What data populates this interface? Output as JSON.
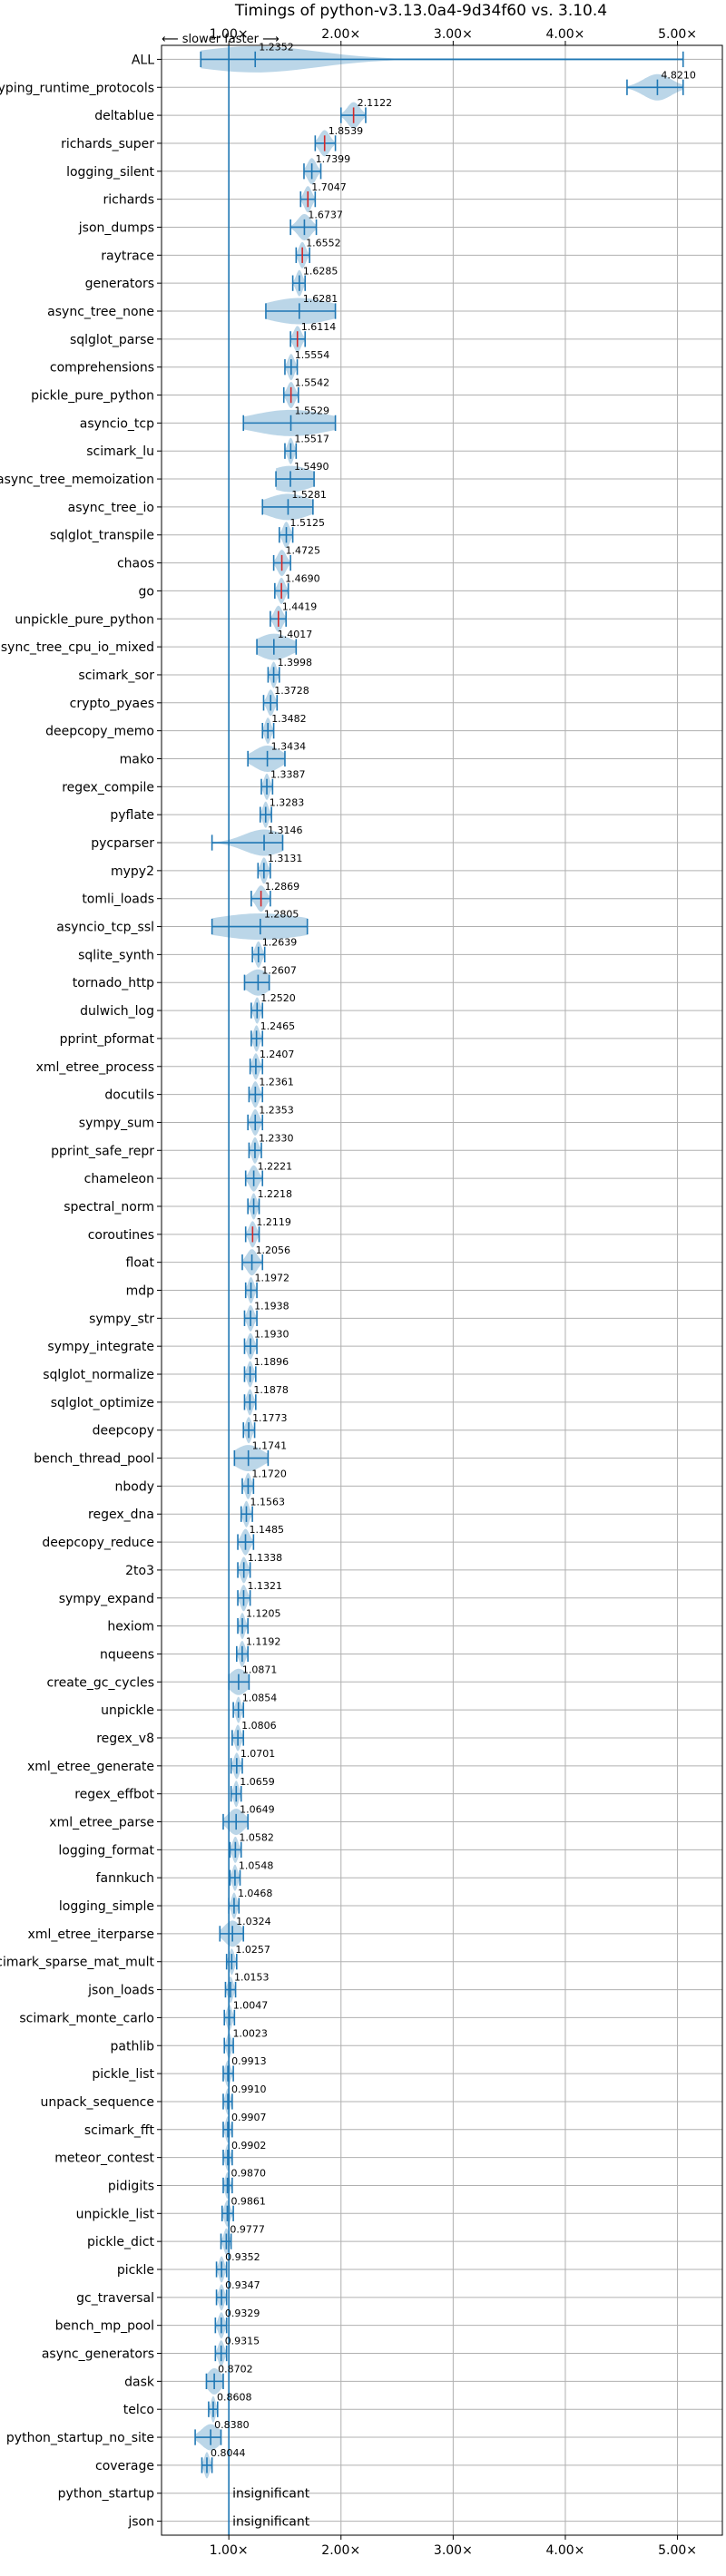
{
  "chart_data": {
    "type": "violin",
    "title": "Timings of python-v3.13.0a4-9d34f60 vs. 3.10.4",
    "direction_note": "⟵ slower   faster ⟶",
    "xlim": [
      0.4,
      5.4
    ],
    "xticks": [
      1,
      2,
      3,
      4,
      5
    ],
    "xtick_labels": [
      "1.00×",
      "2.00×",
      "3.00×",
      "4.00×",
      "5.00×"
    ],
    "reference_line": 1.0,
    "insignificant_label": "insignificant",
    "colors": {
      "violin": "#1f77b4",
      "highlight": "#d62728",
      "grid": "#b0b0b0"
    },
    "benchmarks": [
      {
        "name": "ALL",
        "value": 1.2352,
        "min": 0.75,
        "max": 5.05,
        "spread": 0.55
      },
      {
        "name": "typing_runtime_protocols",
        "value": 4.821,
        "min": 4.55,
        "max": 5.05
      },
      {
        "name": "deltablue",
        "value": 2.1122,
        "min": 2.0,
        "max": 2.22,
        "highlight": true
      },
      {
        "name": "richards_super",
        "value": 1.8539,
        "min": 1.77,
        "max": 1.95,
        "highlight": true
      },
      {
        "name": "logging_silent",
        "value": 1.7399,
        "min": 1.67,
        "max": 1.82
      },
      {
        "name": "richards",
        "value": 1.7047,
        "min": 1.64,
        "max": 1.77,
        "highlight": true
      },
      {
        "name": "json_dumps",
        "value": 1.6737,
        "min": 1.55,
        "max": 1.78
      },
      {
        "name": "raytrace",
        "value": 1.6552,
        "min": 1.6,
        "max": 1.72,
        "highlight": true
      },
      {
        "name": "generators",
        "value": 1.6285,
        "min": 1.57,
        "max": 1.68
      },
      {
        "name": "async_tree_none",
        "value": 1.6281,
        "min": 1.33,
        "max": 1.95,
        "spread": 0.3
      },
      {
        "name": "sqlglot_parse",
        "value": 1.6114,
        "min": 1.55,
        "max": 1.68,
        "highlight": true
      },
      {
        "name": "comprehensions",
        "value": 1.5554,
        "min": 1.5,
        "max": 1.61
      },
      {
        "name": "pickle_pure_python",
        "value": 1.5542,
        "min": 1.49,
        "max": 1.62,
        "highlight": true
      },
      {
        "name": "asyncio_tcp",
        "value": 1.5529,
        "min": 1.13,
        "max": 1.95,
        "spread": 0.35
      },
      {
        "name": "scimark_lu",
        "value": 1.5517,
        "min": 1.5,
        "max": 1.6
      },
      {
        "name": "async_tree_memoization",
        "value": 1.549,
        "min": 1.42,
        "max": 1.76,
        "spread": 0.2
      },
      {
        "name": "async_tree_io",
        "value": 1.5281,
        "min": 1.3,
        "max": 1.75,
        "spread": 0.2
      },
      {
        "name": "sqlglot_transpile",
        "value": 1.5125,
        "min": 1.45,
        "max": 1.57
      },
      {
        "name": "chaos",
        "value": 1.4725,
        "min": 1.4,
        "max": 1.55,
        "highlight": true
      },
      {
        "name": "go",
        "value": 1.469,
        "min": 1.41,
        "max": 1.53,
        "highlight": true
      },
      {
        "name": "unpickle_pure_python",
        "value": 1.4419,
        "min": 1.37,
        "max": 1.51,
        "highlight": true
      },
      {
        "name": "async_tree_cpu_io_mixed",
        "value": 1.4017,
        "min": 1.25,
        "max": 1.6,
        "spread": 0.15
      },
      {
        "name": "scimark_sor",
        "value": 1.3998,
        "min": 1.35,
        "max": 1.45
      },
      {
        "name": "crypto_pyaes",
        "value": 1.3728,
        "min": 1.31,
        "max": 1.43
      },
      {
        "name": "deepcopy_memo",
        "value": 1.3482,
        "min": 1.3,
        "max": 1.4
      },
      {
        "name": "mako",
        "value": 1.3434,
        "min": 1.17,
        "max": 1.5,
        "spread": 0.12
      },
      {
        "name": "regex_compile",
        "value": 1.3387,
        "min": 1.29,
        "max": 1.39
      },
      {
        "name": "pyflate",
        "value": 1.3283,
        "min": 1.28,
        "max": 1.38
      },
      {
        "name": "pycparser",
        "value": 1.3146,
        "min": 0.85,
        "max": 1.48,
        "spread": 0.18
      },
      {
        "name": "mypy2",
        "value": 1.3131,
        "min": 1.26,
        "max": 1.37
      },
      {
        "name": "tomli_loads",
        "value": 1.2869,
        "min": 1.2,
        "max": 1.37,
        "highlight": true
      },
      {
        "name": "asyncio_tcp_ssl",
        "value": 1.2805,
        "min": 0.85,
        "max": 1.7,
        "spread": 0.45
      },
      {
        "name": "sqlite_synth",
        "value": 1.2639,
        "min": 1.21,
        "max": 1.32
      },
      {
        "name": "tornado_http",
        "value": 1.2607,
        "min": 1.14,
        "max": 1.36,
        "spread": 0.1
      },
      {
        "name": "dulwich_log",
        "value": 1.252,
        "min": 1.2,
        "max": 1.3
      },
      {
        "name": "pprint_pformat",
        "value": 1.2465,
        "min": 1.2,
        "max": 1.3
      },
      {
        "name": "xml_etree_process",
        "value": 1.2407,
        "min": 1.19,
        "max": 1.3
      },
      {
        "name": "docutils",
        "value": 1.2361,
        "min": 1.18,
        "max": 1.3
      },
      {
        "name": "sympy_sum",
        "value": 1.2353,
        "min": 1.17,
        "max": 1.3
      },
      {
        "name": "pprint_safe_repr",
        "value": 1.233,
        "min": 1.18,
        "max": 1.29
      },
      {
        "name": "chameleon",
        "value": 1.2221,
        "min": 1.15,
        "max": 1.3
      },
      {
        "name": "spectral_norm",
        "value": 1.2218,
        "min": 1.17,
        "max": 1.27
      },
      {
        "name": "coroutines",
        "value": 1.2119,
        "min": 1.15,
        "max": 1.27,
        "highlight": true
      },
      {
        "name": "float",
        "value": 1.2056,
        "min": 1.12,
        "max": 1.3
      },
      {
        "name": "mdp",
        "value": 1.1972,
        "min": 1.15,
        "max": 1.25
      },
      {
        "name": "sympy_str",
        "value": 1.1938,
        "min": 1.14,
        "max": 1.25
      },
      {
        "name": "sympy_integrate",
        "value": 1.193,
        "min": 1.14,
        "max": 1.25
      },
      {
        "name": "sqlglot_normalize",
        "value": 1.1896,
        "min": 1.14,
        "max": 1.24
      },
      {
        "name": "sqlglot_optimize",
        "value": 1.1878,
        "min": 1.14,
        "max": 1.24
      },
      {
        "name": "deepcopy",
        "value": 1.1773,
        "min": 1.13,
        "max": 1.23
      },
      {
        "name": "bench_thread_pool",
        "value": 1.1741,
        "min": 1.05,
        "max": 1.35,
        "spread": 0.12
      },
      {
        "name": "nbody",
        "value": 1.172,
        "min": 1.12,
        "max": 1.22
      },
      {
        "name": "regex_dna",
        "value": 1.1563,
        "min": 1.11,
        "max": 1.21
      },
      {
        "name": "deepcopy_reduce",
        "value": 1.1485,
        "min": 1.08,
        "max": 1.22
      },
      {
        "name": "2to3",
        "value": 1.1338,
        "min": 1.08,
        "max": 1.19
      },
      {
        "name": "sympy_expand",
        "value": 1.1321,
        "min": 1.08,
        "max": 1.19
      },
      {
        "name": "hexiom",
        "value": 1.1205,
        "min": 1.08,
        "max": 1.17
      },
      {
        "name": "nqueens",
        "value": 1.1192,
        "min": 1.07,
        "max": 1.17
      },
      {
        "name": "create_gc_cycles",
        "value": 1.0871,
        "min": 1.0,
        "max": 1.18,
        "spread": 0.08
      },
      {
        "name": "unpickle",
        "value": 1.0854,
        "min": 1.04,
        "max": 1.13
      },
      {
        "name": "regex_v8",
        "value": 1.0806,
        "min": 1.03,
        "max": 1.13
      },
      {
        "name": "xml_etree_generate",
        "value": 1.0701,
        "min": 1.02,
        "max": 1.12
      },
      {
        "name": "regex_effbot",
        "value": 1.0659,
        "min": 1.02,
        "max": 1.11
      },
      {
        "name": "xml_etree_parse",
        "value": 1.0649,
        "min": 0.95,
        "max": 1.17,
        "spread": 0.07
      },
      {
        "name": "logging_format",
        "value": 1.0582,
        "min": 1.01,
        "max": 1.11
      },
      {
        "name": "fannkuch",
        "value": 1.0548,
        "min": 1.01,
        "max": 1.1
      },
      {
        "name": "logging_simple",
        "value": 1.0468,
        "min": 1.0,
        "max": 1.09
      },
      {
        "name": "xml_etree_iterparse",
        "value": 1.0324,
        "min": 0.92,
        "max": 1.13,
        "spread": 0.07
      },
      {
        "name": "scimark_sparse_mat_mult",
        "value": 1.0257,
        "min": 0.98,
        "max": 1.07
      },
      {
        "name": "json_loads",
        "value": 1.0153,
        "min": 0.97,
        "max": 1.06
      },
      {
        "name": "scimark_monte_carlo",
        "value": 1.0047,
        "min": 0.96,
        "max": 1.05
      },
      {
        "name": "pathlib",
        "value": 1.0023,
        "min": 0.96,
        "max": 1.04
      },
      {
        "name": "pickle_list",
        "value": 0.9913,
        "min": 0.95,
        "max": 1.04
      },
      {
        "name": "unpack_sequence",
        "value": 0.991,
        "min": 0.95,
        "max": 1.03
      },
      {
        "name": "scimark_fft",
        "value": 0.9907,
        "min": 0.95,
        "max": 1.03
      },
      {
        "name": "meteor_contest",
        "value": 0.9902,
        "min": 0.95,
        "max": 1.03
      },
      {
        "name": "pidigits",
        "value": 0.987,
        "min": 0.95,
        "max": 1.03
      },
      {
        "name": "unpickle_list",
        "value": 0.9861,
        "min": 0.94,
        "max": 1.04
      },
      {
        "name": "pickle_dict",
        "value": 0.9777,
        "min": 0.93,
        "max": 1.02
      },
      {
        "name": "pickle",
        "value": 0.9352,
        "min": 0.89,
        "max": 0.98
      },
      {
        "name": "gc_traversal",
        "value": 0.9347,
        "min": 0.89,
        "max": 0.98
      },
      {
        "name": "bench_mp_pool",
        "value": 0.9329,
        "min": 0.88,
        "max": 0.98
      },
      {
        "name": "async_generators",
        "value": 0.9315,
        "min": 0.88,
        "max": 0.98
      },
      {
        "name": "dask",
        "value": 0.8702,
        "min": 0.8,
        "max": 0.95,
        "spread": 0.06
      },
      {
        "name": "telco",
        "value": 0.8608,
        "min": 0.82,
        "max": 0.9
      },
      {
        "name": "python_startup_no_site",
        "value": 0.838,
        "min": 0.7,
        "max": 0.93,
        "spread": 0.08
      },
      {
        "name": "coverage",
        "value": 0.8044,
        "min": 0.76,
        "max": 0.85
      },
      {
        "name": "python_startup",
        "value": null,
        "insignificant": true
      },
      {
        "name": "json",
        "value": null,
        "insignificant": true
      }
    ]
  }
}
